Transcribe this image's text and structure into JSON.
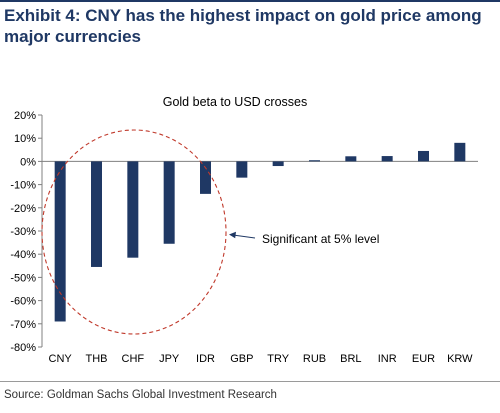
{
  "exhibit": {
    "title": "Exhibit 4: CNY has the highest impact on gold price among major currencies",
    "source": "Source: Goldman Sachs Global Investment Research"
  },
  "chart_data": {
    "type": "bar",
    "title": "Gold beta to USD crosses",
    "xlabel": "",
    "ylabel": "",
    "categories": [
      "CNY",
      "THB",
      "CHF",
      "JPY",
      "IDR",
      "GBP",
      "TRY",
      "RUB",
      "BRL",
      "INR",
      "EUR",
      "KRW"
    ],
    "values": [
      -69,
      -45.5,
      -41.5,
      -35.5,
      -14,
      -7,
      -2,
      0.5,
      2.2,
      2.3,
      4.5,
      8
    ],
    "unit": "%",
    "ylim": [
      -80,
      20
    ],
    "yticks": [
      20,
      10,
      0,
      -10,
      -20,
      -30,
      -40,
      -50,
      -60,
      -70,
      -80
    ],
    "ytick_labels": [
      "20%",
      "10%",
      "0%",
      "-10%",
      "-20%",
      "-30%",
      "-40%",
      "-50%",
      "-60%",
      "-70%",
      "-80%"
    ],
    "bar_color": "#1f3864",
    "grid": false,
    "legend": "none",
    "annotation": {
      "text": "Significant at 5% level",
      "highlights": [
        "CNY",
        "THB",
        "CHF",
        "JPY",
        "IDR"
      ],
      "highlight_color": "#c0392b"
    }
  }
}
